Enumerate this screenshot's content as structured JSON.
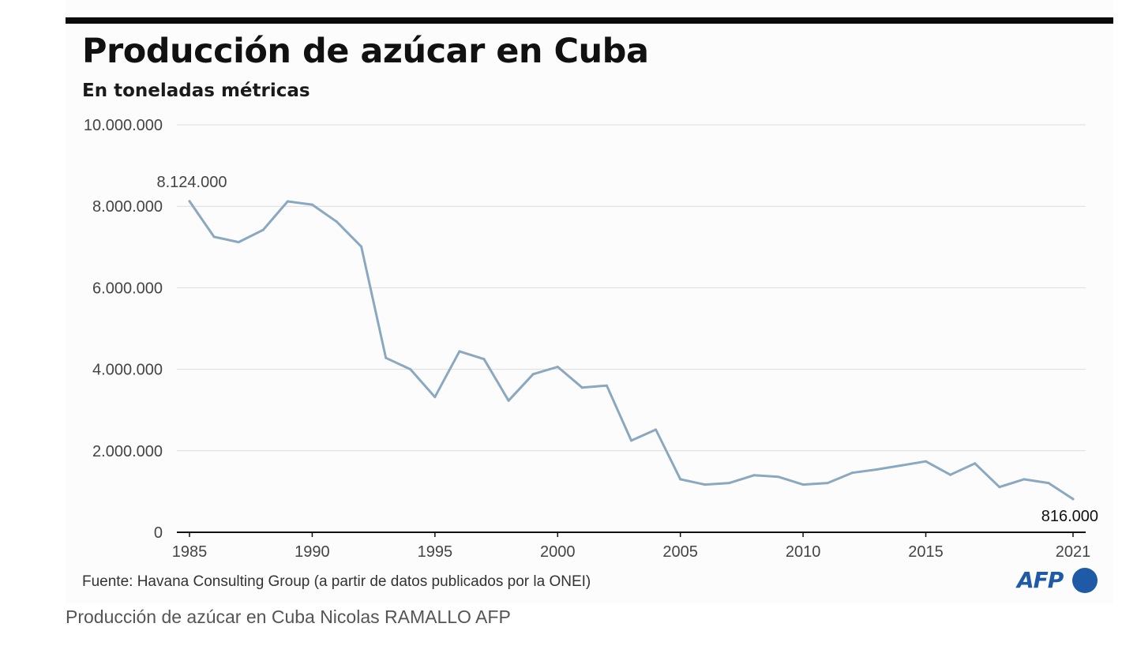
{
  "title": "Producción de azúcar en Cuba",
  "subtitle": "En toneladas métricas",
  "source": "Fuente: Havana Consulting Group (a partir de datos publicados por la ONEI)",
  "logo": {
    "text": "AFP",
    "icon": "afp-logo-dot"
  },
  "caption": "Producción de azúcar en Cuba Nicolas RAMALLO AFP",
  "colors": {
    "line": "#8aa8bf",
    "grid": "#dcdcdc",
    "axis": "#111111",
    "logo": "#1f5aa6"
  },
  "chart_data": {
    "type": "line",
    "title": "Producción de azúcar en Cuba",
    "subtitle": "En toneladas métricas",
    "xlabel": "",
    "ylabel": "",
    "xlim": [
      1985,
      2021
    ],
    "ylim": [
      0,
      10000000
    ],
    "grid": true,
    "yticks": [
      0,
      2000000,
      4000000,
      6000000,
      8000000,
      10000000
    ],
    "ytick_labels": [
      "0",
      "2.000.000",
      "4.000.000",
      "6.000.000",
      "8.000.000",
      "10.000.000"
    ],
    "xticks": [
      1985,
      1990,
      1995,
      2000,
      2005,
      2010,
      2015,
      2021
    ],
    "xtick_labels": [
      "1985",
      "1990",
      "1995",
      "2000",
      "2005",
      "2010",
      "2015",
      "2021"
    ],
    "x": [
      1985,
      1986,
      1987,
      1988,
      1989,
      1990,
      1991,
      1992,
      1993,
      1994,
      1995,
      1996,
      1997,
      1998,
      1999,
      2000,
      2001,
      2002,
      2003,
      2004,
      2005,
      2006,
      2007,
      2008,
      2009,
      2010,
      2011,
      2012,
      2013,
      2014,
      2015,
      2016,
      2017,
      2018,
      2019,
      2020,
      2021
    ],
    "series": [
      {
        "values": [
          8124000,
          7250000,
          7120000,
          7420000,
          8120000,
          8040000,
          7620000,
          7010000,
          4280000,
          4000000,
          3320000,
          4440000,
          4250000,
          3230000,
          3880000,
          4060000,
          3550000,
          3600000,
          2250000,
          2520000,
          1300000,
          1170000,
          1210000,
          1400000,
          1360000,
          1170000,
          1210000,
          1460000,
          1540000,
          1640000,
          1740000,
          1410000,
          1690000,
          1110000,
          1300000,
          1210000,
          816000
        ]
      }
    ],
    "annotations": [
      {
        "x": 1985,
        "y": 8124000,
        "text": "8.124.000"
      },
      {
        "x": 2021,
        "y": 816000,
        "text": "816.000"
      }
    ]
  }
}
